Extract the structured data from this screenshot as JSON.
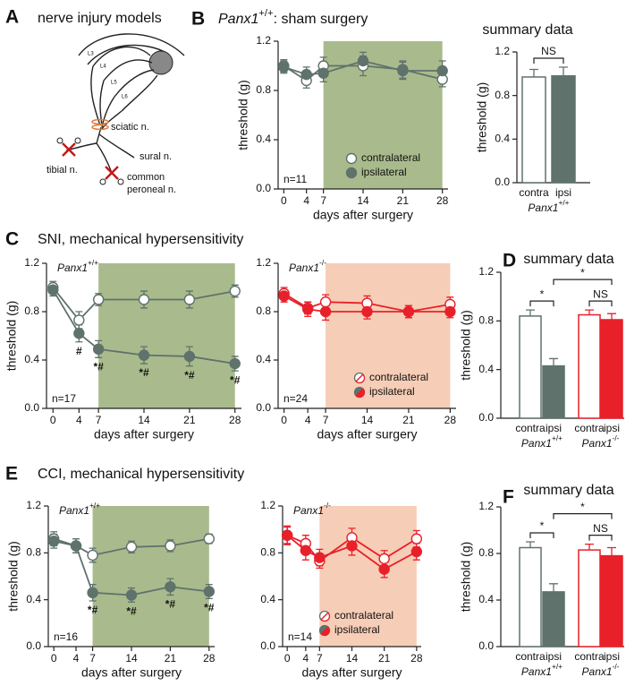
{
  "diagram": {
    "panel_label": "A",
    "title": "nerve injury models",
    "roots": [
      "L3",
      "L4",
      "L5",
      "L6"
    ],
    "labels": {
      "sciatic": "sciatic n.",
      "sural": "sural n.",
      "tibial": "tibial n.",
      "peroneal": [
        "common",
        "peroneal n."
      ]
    }
  },
  "chart_data": [
    {
      "type": "line",
      "panel_label": "B",
      "title_parts": {
        "gene": "Panx1",
        "allele": "+/+",
        "text": ": sham surgery"
      },
      "x": [
        0,
        4,
        7,
        14,
        21,
        28
      ],
      "xlim": [
        -1,
        29
      ],
      "xticks": [
        0,
        4,
        7,
        14,
        21,
        28
      ],
      "ylim": [
        0,
        1.2
      ],
      "yticks": [
        {
          "value": 0,
          "label": "0.0"
        },
        0.4,
        0.8,
        1.2
      ],
      "xlabel": "days after surgery",
      "ylabel": "threshold (g)",
      "shade": [
        7,
        28
      ],
      "shade_color": "#a9bb8c",
      "annotation": "n=11",
      "legend": "bottom right",
      "series": [
        {
          "name": "contralateral",
          "color": "#5f726c",
          "fill": "#ffffff",
          "values": [
            1.0,
            0.88,
            1.0,
            1.0,
            0.97,
            0.89
          ],
          "errors": [
            0.05,
            0.06,
            0.07,
            0.08,
            0.07,
            0.06
          ]
        },
        {
          "name": "ipsilateral",
          "color": "#5f726c",
          "fill": "#5f726c",
          "values": [
            0.99,
            0.93,
            0.94,
            1.04,
            0.96,
            0.96
          ],
          "errors": [
            0.05,
            0.06,
            0.07,
            0.07,
            0.07,
            0.08
          ]
        }
      ]
    },
    {
      "type": "bar",
      "title": "summary data",
      "categories": [
        "contra",
        "ipsi"
      ],
      "values": [
        0.97,
        0.98
      ],
      "errors": [
        0.07,
        0.08
      ],
      "colors": [
        "#5f726c",
        "#5f726c"
      ],
      "fills": [
        "#ffffff",
        "#5f726c"
      ],
      "ylim": [
        0,
        1.2
      ],
      "yticks": [
        {
          "value": 0,
          "label": "0.0"
        },
        0.4,
        0.8,
        1.2
      ],
      "ylabel": "threshold (g)",
      "groups": [
        {
          "gene": "Panx1",
          "allele": "+/+",
          "span": [
            0,
            1
          ]
        }
      ],
      "comparisons": [
        {
          "between": [
            0,
            1
          ],
          "label": "NS"
        }
      ]
    },
    {
      "type": "line",
      "panel_label": "C",
      "title": "SNI, mechanical hypersensitivity",
      "genotype": {
        "gene": "Panx1",
        "allele": "+/+",
        "color": "#6e8a83"
      },
      "x": [
        0,
        4,
        7,
        14,
        21,
        28
      ],
      "xlim": [
        -1,
        29
      ],
      "xticks": [
        0,
        4,
        7,
        14,
        21,
        28
      ],
      "ylim": [
        0,
        1.2
      ],
      "yticks": [
        {
          "value": 0,
          "label": "0.0"
        },
        0.4,
        0.8,
        1.2
      ],
      "xlabel": "days after surgery",
      "ylabel": "threshold (g)",
      "shade": [
        7,
        28
      ],
      "shade_color": "#a9bb8c",
      "annotation": "n=17",
      "series": [
        {
          "name": "contralateral",
          "color": "#5f726c",
          "fill": "#ffffff",
          "values": [
            1.0,
            0.73,
            0.9,
            0.9,
            0.9,
            0.97
          ],
          "errors": [
            0.05,
            0.07,
            0.05,
            0.07,
            0.07,
            0.05
          ]
        },
        {
          "name": "ipsilateral",
          "color": "#5f726c",
          "fill": "#5f726c",
          "values": [
            0.98,
            0.62,
            0.49,
            0.44,
            0.43,
            0.37
          ],
          "errors": [
            0.05,
            0.07,
            0.07,
            0.07,
            0.08,
            0.06
          ],
          "point_labels": [
            null,
            "#",
            "*#",
            "*#",
            "*#",
            "*#"
          ]
        }
      ]
    },
    {
      "type": "line",
      "genotype": {
        "gene": "Panx1",
        "allele": "-/-",
        "color": "#e8202a"
      },
      "x": [
        0,
        4,
        7,
        14,
        21,
        28
      ],
      "xlim": [
        -1,
        29
      ],
      "xticks": [
        0,
        4,
        7,
        14,
        21,
        28
      ],
      "ylim": [
        0,
        1.2
      ],
      "yticks": [
        {
          "value": 0,
          "label": "0.0"
        },
        0.4,
        0.8,
        1.2
      ],
      "xlabel": "days after surgery",
      "shade": [
        7,
        28
      ],
      "shade_color": "#f6cdb6",
      "annotation": "n=24",
      "legend": "bottom right",
      "legend_style": "split",
      "series": [
        {
          "name": "contralateral",
          "color": "#e8202a",
          "fill": "#ffffff",
          "values": [
            0.95,
            0.83,
            0.88,
            0.87,
            0.8,
            0.86
          ],
          "errors": [
            0.05,
            0.05,
            0.06,
            0.06,
            0.05,
            0.06
          ]
        },
        {
          "name": "ipsilateral",
          "color": "#e8202a",
          "fill": "#e8202a",
          "values": [
            0.93,
            0.82,
            0.8,
            0.8,
            0.8,
            0.8
          ],
          "errors": [
            0.05,
            0.06,
            0.07,
            0.06,
            0.05,
            0.05
          ]
        }
      ]
    },
    {
      "type": "bar",
      "panel_label": "D",
      "title": "summary data",
      "categories": [
        "contra",
        "ipsi",
        "contra",
        "ipsi"
      ],
      "values": [
        0.84,
        0.43,
        0.85,
        0.81
      ],
      "errors": [
        0.05,
        0.06,
        0.04,
        0.05
      ],
      "colors": [
        "#5f726c",
        "#5f726c",
        "#e8202a",
        "#e8202a"
      ],
      "fills": [
        "#ffffff",
        "#5f726c",
        "#ffffff",
        "#e8202a"
      ],
      "ylim": [
        0,
        1.2
      ],
      "yticks": [
        {
          "value": 0,
          "label": "0.0"
        },
        0.4,
        0.8,
        1.2
      ],
      "ylabel": "threshold (g)",
      "groups": [
        {
          "gene": "Panx1",
          "allele": "+/+",
          "span": [
            0,
            1
          ]
        },
        {
          "gene": "Panx1",
          "allele": "-/-",
          "span": [
            2,
            3
          ]
        }
      ],
      "comparisons": [
        {
          "between": [
            0,
            1
          ],
          "label": "*"
        },
        {
          "between": [
            1,
            3
          ],
          "label": "*"
        },
        {
          "between": [
            2,
            3
          ],
          "label": "NS"
        }
      ]
    },
    {
      "type": "line",
      "panel_label": "E",
      "title": "CCI, mechanical hypersensitivity",
      "genotype": {
        "gene": "Panx1",
        "allele": "+/+",
        "color": "#6e8a83"
      },
      "x": [
        0,
        4,
        7,
        14,
        21,
        28
      ],
      "xlim": [
        -1,
        29
      ],
      "xticks": [
        0,
        4,
        7,
        14,
        21,
        28
      ],
      "ylim": [
        0,
        1.2
      ],
      "yticks": [
        {
          "value": 0,
          "label": "0.0"
        },
        0.4,
        0.8,
        1.2
      ],
      "xlabel": "days after surgery",
      "ylabel": "threshold (g)",
      "shade": [
        7,
        28
      ],
      "shade_color": "#a9bb8c",
      "annotation": "n=16",
      "series": [
        {
          "name": "contralateral",
          "color": "#5f726c",
          "fill": "#ffffff",
          "values": [
            0.92,
            0.86,
            0.78,
            0.85,
            0.86,
            0.92
          ],
          "errors": [
            0.06,
            0.06,
            0.06,
            0.05,
            0.05,
            0.04
          ]
        },
        {
          "name": "ipsilateral",
          "color": "#5f726c",
          "fill": "#5f726c",
          "values": [
            0.9,
            0.86,
            0.46,
            0.44,
            0.51,
            0.47
          ],
          "errors": [
            0.06,
            0.06,
            0.07,
            0.06,
            0.07,
            0.06
          ],
          "point_labels": [
            null,
            null,
            "*#",
            "*#",
            "*#",
            "*#"
          ]
        }
      ]
    },
    {
      "type": "line",
      "genotype": {
        "gene": "Panx1",
        "allele": "-/-",
        "color": "#e8202a"
      },
      "x": [
        0,
        4,
        7,
        14,
        21,
        28
      ],
      "xlim": [
        -1,
        29
      ],
      "xticks": [
        0,
        4,
        7,
        14,
        21,
        28
      ],
      "ylim": [
        0,
        1.2
      ],
      "yticks": [
        {
          "value": 0,
          "label": "0.0"
        },
        0.4,
        0.8,
        1.2
      ],
      "xlabel": "days after surgery",
      "shade": [
        7,
        28
      ],
      "shade_color": "#f6cdb6",
      "annotation": "n=14",
      "legend": "bottom right",
      "legend_style": "split",
      "series": [
        {
          "name": "contralateral",
          "color": "#e8202a",
          "fill": "#ffffff",
          "values": [
            0.95,
            0.88,
            0.73,
            0.93,
            0.75,
            0.92
          ],
          "errors": [
            0.07,
            0.07,
            0.06,
            0.08,
            0.07,
            0.07
          ]
        },
        {
          "name": "ipsilateral",
          "color": "#e8202a",
          "fill": "#e8202a",
          "values": [
            0.95,
            0.82,
            0.76,
            0.86,
            0.66,
            0.81
          ],
          "errors": [
            0.08,
            0.08,
            0.07,
            0.08,
            0.07,
            0.07
          ]
        }
      ]
    },
    {
      "type": "bar",
      "panel_label": "F",
      "title": "summary data",
      "categories": [
        "contra",
        "ipsi",
        "contra",
        "ipsi"
      ],
      "values": [
        0.85,
        0.47,
        0.83,
        0.78
      ],
      "errors": [
        0.05,
        0.07,
        0.05,
        0.07
      ],
      "colors": [
        "#5f726c",
        "#5f726c",
        "#e8202a",
        "#e8202a"
      ],
      "fills": [
        "#ffffff",
        "#5f726c",
        "#ffffff",
        "#e8202a"
      ],
      "ylim": [
        0,
        1.2
      ],
      "yticks": [
        {
          "value": 0,
          "label": "0.0"
        },
        0.4,
        0.8,
        1.2
      ],
      "ylabel": "threshold (g)",
      "groups": [
        {
          "gene": "Panx1",
          "allele": "+/+",
          "span": [
            0,
            1
          ]
        },
        {
          "gene": "Panx1",
          "allele": "-/-",
          "span": [
            2,
            3
          ]
        }
      ],
      "comparisons": [
        {
          "between": [
            0,
            1
          ],
          "label": "*"
        },
        {
          "between": [
            1,
            3
          ],
          "label": "*"
        },
        {
          "between": [
            2,
            3
          ],
          "label": "NS"
        }
      ]
    }
  ]
}
